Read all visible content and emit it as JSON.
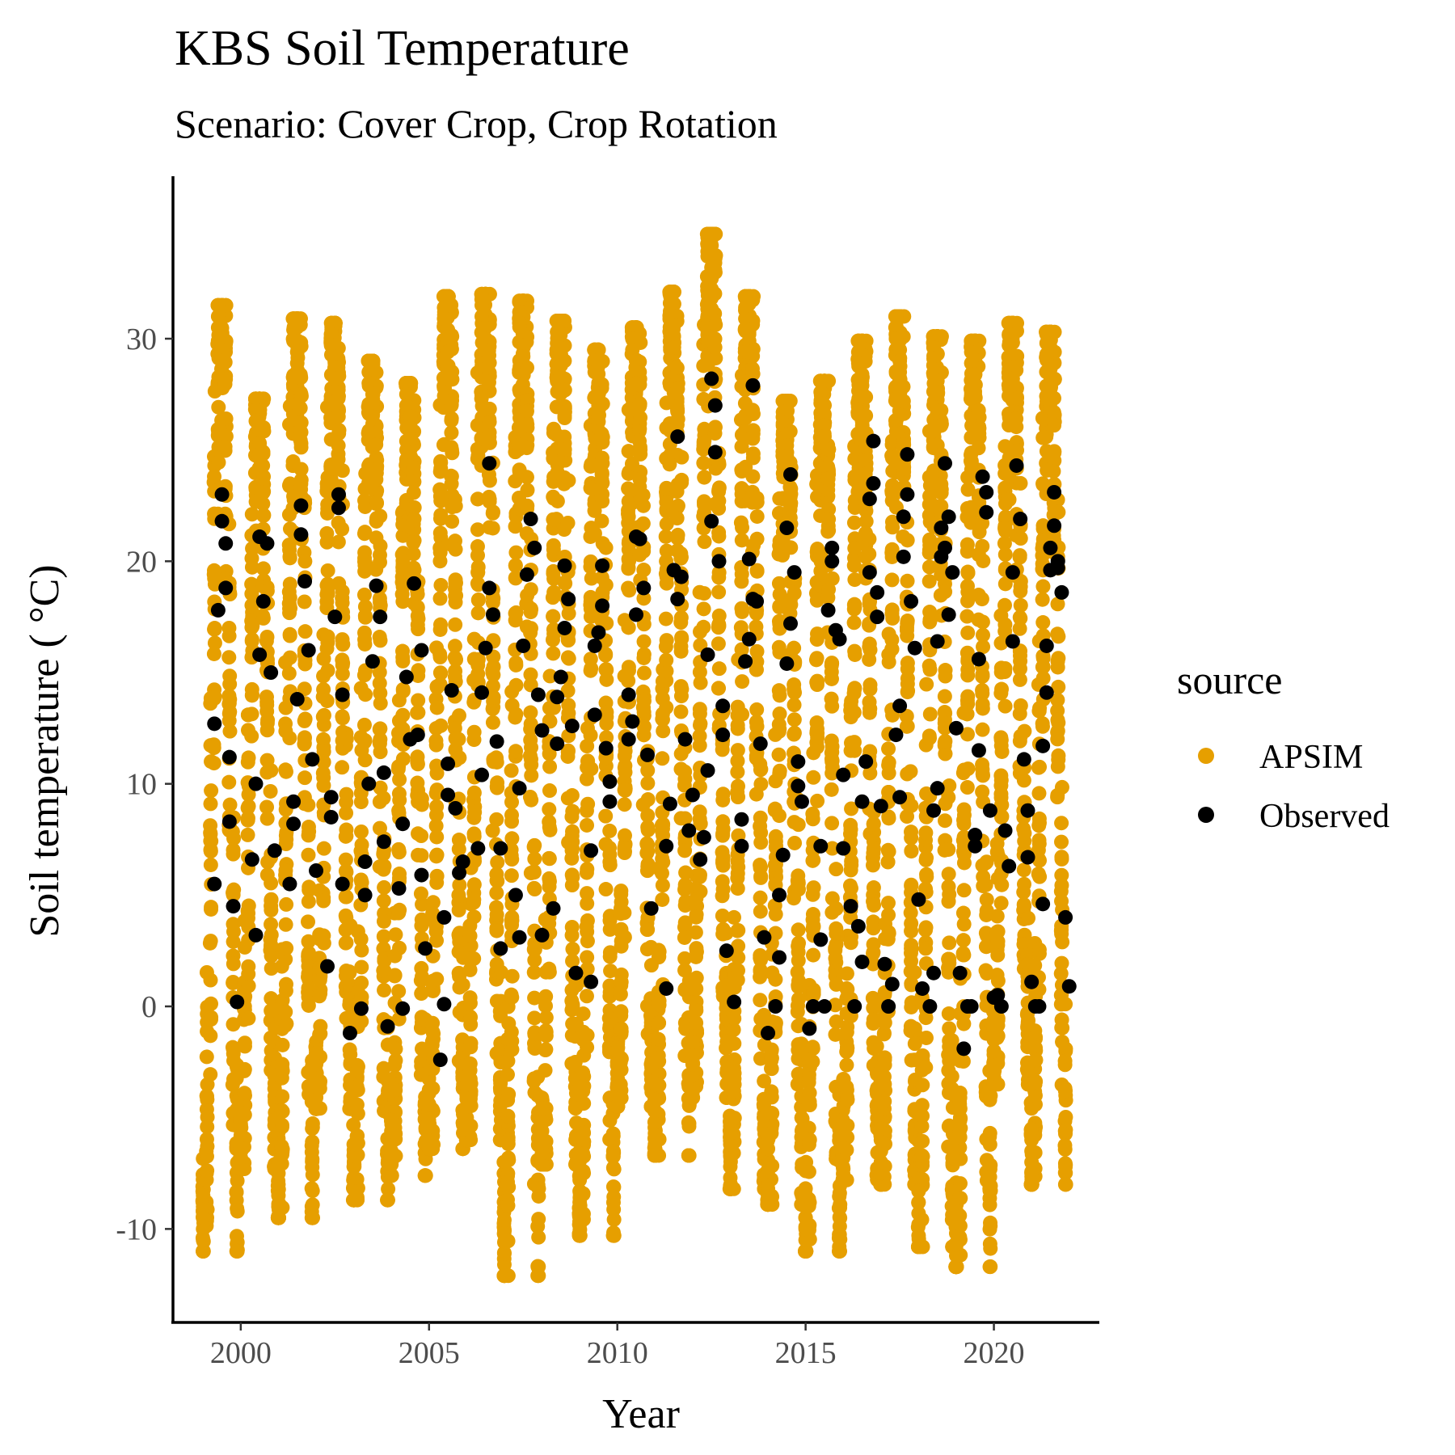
{
  "colors": {
    "apsim": "#E69F00",
    "observed": "#000000",
    "axis": "#000000",
    "tick_text": "#4d4d4d",
    "background": "#ffffff"
  },
  "chart_data": {
    "type": "scatter",
    "title": "KBS Soil Temperature",
    "subtitle": "Scenario: Cover Crop, Crop Rotation",
    "xlabel": "Year",
    "ylabel": "Soil temperature ( °C)",
    "xlim": [
      1998.2,
      2022.8
    ],
    "ylim": [
      -14.2,
      37.3
    ],
    "x_ticks": [
      2000,
      2005,
      2010,
      2015,
      2020
    ],
    "x_tick_labels": [
      "2000",
      "2005",
      "2010",
      "2015",
      "2020"
    ],
    "y_ticks": [
      -10,
      0,
      10,
      20,
      30
    ],
    "y_tick_labels": [
      "-10",
      "0",
      "10",
      "20",
      "30"
    ],
    "grid": false,
    "legend": {
      "title": "source",
      "position": "right",
      "entries": [
        "APSIM",
        "Observed"
      ]
    },
    "series": [
      {
        "name": "APSIM",
        "description_note": "",
        "color": "#E69F00",
        "yearly_range": [
          {
            "year": 1999,
            "min": -11.0,
            "max": 31.5
          },
          {
            "year": 2000,
            "min": -7.3,
            "max": 27.3
          },
          {
            "year": 2001,
            "min": -9.5,
            "max": 30.9
          },
          {
            "year": 2002,
            "min": -4.6,
            "max": 30.7
          },
          {
            "year": 2003,
            "min": -8.7,
            "max": 29.0
          },
          {
            "year": 2004,
            "min": -7.6,
            "max": 28.0
          },
          {
            "year": 2005,
            "min": -6.4,
            "max": 31.9
          },
          {
            "year": 2006,
            "min": -6.0,
            "max": 32.0
          },
          {
            "year": 2007,
            "min": -12.1,
            "max": 31.7
          },
          {
            "year": 2008,
            "min": -7.1,
            "max": 30.8
          },
          {
            "year": 2009,
            "min": -10.3,
            "max": 29.5
          },
          {
            "year": 2010,
            "min": -4.5,
            "max": 30.5
          },
          {
            "year": 2011,
            "min": -6.7,
            "max": 32.1
          },
          {
            "year": 2012,
            "min": -4.1,
            "max": 34.7
          },
          {
            "year": 2013,
            "min": -8.2,
            "max": 31.9
          },
          {
            "year": 2014,
            "min": -8.9,
            "max": 27.2
          },
          {
            "year": 2015,
            "min": -11.0,
            "max": 28.1
          },
          {
            "year": 2016,
            "min": -7.8,
            "max": 29.9
          },
          {
            "year": 2017,
            "min": -8.0,
            "max": 31.0
          },
          {
            "year": 2018,
            "min": -10.8,
            "max": 30.1
          },
          {
            "year": 2019,
            "min": -11.7,
            "max": 29.9
          },
          {
            "year": 2020,
            "min": -3.5,
            "max": 30.7
          },
          {
            "year": 2021,
            "min": -8.0,
            "max": 30.3
          }
        ]
      },
      {
        "name": "Observed",
        "color": "#000000",
        "points": [
          [
            1999.3,
            12.7
          ],
          [
            1999.3,
            5.5
          ],
          [
            1999.4,
            17.8
          ],
          [
            1999.5,
            21.8
          ],
          [
            1999.5,
            23.0
          ],
          [
            1999.6,
            18.8
          ],
          [
            1999.6,
            20.8
          ],
          [
            1999.7,
            11.2
          ],
          [
            1999.7,
            8.3
          ],
          [
            1999.8,
            4.5
          ],
          [
            1999.9,
            0.2
          ],
          [
            2000.3,
            6.6
          ],
          [
            2000.4,
            3.2
          ],
          [
            2000.4,
            10.0
          ],
          [
            2000.5,
            15.8
          ],
          [
            2000.5,
            21.1
          ],
          [
            2000.6,
            18.2
          ],
          [
            2000.7,
            20.8
          ],
          [
            2000.8,
            15.0
          ],
          [
            2000.9,
            7.0
          ],
          [
            2001.3,
            5.5
          ],
          [
            2001.4,
            9.2
          ],
          [
            2001.4,
            8.2
          ],
          [
            2001.5,
            13.8
          ],
          [
            2001.6,
            21.2
          ],
          [
            2001.6,
            22.5
          ],
          [
            2001.7,
            19.1
          ],
          [
            2001.8,
            16.0
          ],
          [
            2001.9,
            11.1
          ],
          [
            2002.0,
            6.1
          ],
          [
            2002.3,
            1.8
          ],
          [
            2002.4,
            8.5
          ],
          [
            2002.4,
            9.4
          ],
          [
            2002.5,
            17.5
          ],
          [
            2002.6,
            23.0
          ],
          [
            2002.6,
            22.4
          ],
          [
            2002.7,
            14.0
          ],
          [
            2002.7,
            5.5
          ],
          [
            2002.9,
            -1.2
          ],
          [
            2003.2,
            -0.1
          ],
          [
            2003.3,
            6.5
          ],
          [
            2003.3,
            5.0
          ],
          [
            2003.4,
            10.0
          ],
          [
            2003.5,
            15.5
          ],
          [
            2003.6,
            18.9
          ],
          [
            2003.7,
            17.5
          ],
          [
            2003.8,
            10.5
          ],
          [
            2003.8,
            7.4
          ],
          [
            2003.9,
            -0.9
          ],
          [
            2004.2,
            5.3
          ],
          [
            2004.3,
            -0.1
          ],
          [
            2004.3,
            8.2
          ],
          [
            2004.4,
            14.8
          ],
          [
            2004.5,
            12.0
          ],
          [
            2004.6,
            19.0
          ],
          [
            2004.7,
            12.2
          ],
          [
            2004.8,
            16.0
          ],
          [
            2004.8,
            5.9
          ],
          [
            2004.9,
            2.6
          ],
          [
            2005.3,
            -2.4
          ],
          [
            2005.4,
            0.1
          ],
          [
            2005.4,
            4.0
          ],
          [
            2005.5,
            9.5
          ],
          [
            2005.5,
            10.9
          ],
          [
            2005.6,
            14.2
          ],
          [
            2005.7,
            8.9
          ],
          [
            2005.8,
            6.0
          ],
          [
            2005.9,
            6.5
          ],
          [
            2006.3,
            7.1
          ],
          [
            2006.4,
            10.4
          ],
          [
            2006.4,
            14.1
          ],
          [
            2006.5,
            16.1
          ],
          [
            2006.6,
            18.8
          ],
          [
            2006.6,
            24.4
          ],
          [
            2006.7,
            17.6
          ],
          [
            2006.8,
            11.9
          ],
          [
            2006.9,
            7.1
          ],
          [
            2006.9,
            2.6
          ],
          [
            2007.3,
            5.0
          ],
          [
            2007.4,
            3.1
          ],
          [
            2007.4,
            9.8
          ],
          [
            2007.5,
            16.2
          ],
          [
            2007.6,
            19.4
          ],
          [
            2007.7,
            21.9
          ],
          [
            2007.8,
            20.6
          ],
          [
            2007.9,
            14.0
          ],
          [
            2008.0,
            12.4
          ],
          [
            2008.0,
            3.2
          ],
          [
            2008.3,
            4.4
          ],
          [
            2008.4,
            13.9
          ],
          [
            2008.4,
            11.8
          ],
          [
            2008.5,
            14.8
          ],
          [
            2008.6,
            17.0
          ],
          [
            2008.6,
            19.8
          ],
          [
            2008.7,
            18.3
          ],
          [
            2008.8,
            12.6
          ],
          [
            2008.9,
            1.5
          ],
          [
            2009.3,
            1.1
          ],
          [
            2009.3,
            7.0
          ],
          [
            2009.4,
            13.1
          ],
          [
            2009.4,
            16.2
          ],
          [
            2009.5,
            16.8
          ],
          [
            2009.6,
            19.8
          ],
          [
            2009.6,
            18.0
          ],
          [
            2009.7,
            11.6
          ],
          [
            2009.8,
            10.1
          ],
          [
            2009.8,
            9.2
          ],
          [
            2010.3,
            12.0
          ],
          [
            2010.3,
            14.0
          ],
          [
            2010.4,
            12.8
          ],
          [
            2010.5,
            17.6
          ],
          [
            2010.5,
            21.1
          ],
          [
            2010.6,
            21.0
          ],
          [
            2010.7,
            18.8
          ],
          [
            2010.8,
            11.3
          ],
          [
            2010.9,
            4.4
          ],
          [
            2011.3,
            0.8
          ],
          [
            2011.3,
            7.2
          ],
          [
            2011.4,
            9.1
          ],
          [
            2011.5,
            19.6
          ],
          [
            2011.6,
            18.3
          ],
          [
            2011.6,
            25.6
          ],
          [
            2011.7,
            19.3
          ],
          [
            2011.8,
            12.0
          ],
          [
            2011.9,
            7.9
          ],
          [
            2012.0,
            9.5
          ],
          [
            2012.2,
            6.6
          ],
          [
            2012.3,
            7.6
          ],
          [
            2012.4,
            10.6
          ],
          [
            2012.4,
            15.8
          ],
          [
            2012.5,
            21.8
          ],
          [
            2012.5,
            28.2
          ],
          [
            2012.6,
            27.0
          ],
          [
            2012.6,
            24.9
          ],
          [
            2012.7,
            20.0
          ],
          [
            2012.8,
            13.5
          ],
          [
            2012.8,
            12.2
          ],
          [
            2012.9,
            2.5
          ],
          [
            2013.1,
            0.2
          ],
          [
            2013.3,
            7.2
          ],
          [
            2013.3,
            8.4
          ],
          [
            2013.4,
            15.5
          ],
          [
            2013.5,
            20.1
          ],
          [
            2013.5,
            16.5
          ],
          [
            2013.6,
            18.3
          ],
          [
            2013.6,
            27.9
          ],
          [
            2013.7,
            18.2
          ],
          [
            2013.8,
            11.8
          ],
          [
            2013.9,
            3.1
          ],
          [
            2014.0,
            -1.2
          ],
          [
            2014.2,
            0.0
          ],
          [
            2014.3,
            2.2
          ],
          [
            2014.3,
            5.0
          ],
          [
            2014.4,
            6.8
          ],
          [
            2014.5,
            15.4
          ],
          [
            2014.5,
            21.5
          ],
          [
            2014.6,
            23.9
          ],
          [
            2014.6,
            17.2
          ],
          [
            2014.7,
            19.5
          ],
          [
            2014.8,
            11.0
          ],
          [
            2014.8,
            9.9
          ],
          [
            2014.9,
            9.2
          ],
          [
            2015.1,
            -1.0
          ],
          [
            2015.2,
            0.0
          ],
          [
            2015.4,
            3.0
          ],
          [
            2015.4,
            7.2
          ],
          [
            2015.5,
            0.0
          ],
          [
            2015.6,
            17.8
          ],
          [
            2015.7,
            20.0
          ],
          [
            2015.7,
            20.6
          ],
          [
            2015.8,
            16.9
          ],
          [
            2015.9,
            16.5
          ],
          [
            2016.0,
            10.4
          ],
          [
            2016.0,
            7.1
          ],
          [
            2016.2,
            4.5
          ],
          [
            2016.3,
            0.0
          ],
          [
            2016.4,
            3.6
          ],
          [
            2016.5,
            2.0
          ],
          [
            2016.5,
            9.2
          ],
          [
            2016.6,
            11.0
          ],
          [
            2016.7,
            19.5
          ],
          [
            2016.7,
            22.8
          ],
          [
            2016.8,
            25.4
          ],
          [
            2016.8,
            23.5
          ],
          [
            2016.9,
            17.5
          ],
          [
            2016.9,
            18.6
          ],
          [
            2017.0,
            9.0
          ],
          [
            2017.1,
            1.9
          ],
          [
            2017.2,
            0.0
          ],
          [
            2017.3,
            1.0
          ],
          [
            2017.4,
            12.2
          ],
          [
            2017.5,
            9.4
          ],
          [
            2017.5,
            13.5
          ],
          [
            2017.6,
            20.2
          ],
          [
            2017.6,
            22.0
          ],
          [
            2017.7,
            24.8
          ],
          [
            2017.7,
            23.0
          ],
          [
            2017.8,
            18.2
          ],
          [
            2017.9,
            16.1
          ],
          [
            2018.0,
            4.8
          ],
          [
            2018.1,
            0.8
          ],
          [
            2018.3,
            0.0
          ],
          [
            2018.4,
            1.5
          ],
          [
            2018.4,
            8.8
          ],
          [
            2018.5,
            9.8
          ],
          [
            2018.5,
            16.4
          ],
          [
            2018.6,
            20.2
          ],
          [
            2018.6,
            21.5
          ],
          [
            2018.7,
            24.4
          ],
          [
            2018.7,
            20.6
          ],
          [
            2018.8,
            22.0
          ],
          [
            2018.8,
            17.6
          ],
          [
            2018.9,
            19.5
          ],
          [
            2019.0,
            12.5
          ],
          [
            2019.1,
            1.5
          ],
          [
            2019.2,
            -1.9
          ],
          [
            2019.3,
            0.0
          ],
          [
            2019.4,
            0.0
          ],
          [
            2019.5,
            7.2
          ],
          [
            2019.5,
            7.7
          ],
          [
            2019.6,
            11.5
          ],
          [
            2019.6,
            15.6
          ],
          [
            2019.7,
            23.8
          ],
          [
            2019.8,
            22.2
          ],
          [
            2019.8,
            23.1
          ],
          [
            2019.9,
            8.8
          ],
          [
            2020.0,
            0.4
          ],
          [
            2020.1,
            0.5
          ],
          [
            2020.2,
            0.0
          ],
          [
            2020.3,
            7.9
          ],
          [
            2020.4,
            6.3
          ],
          [
            2020.5,
            16.4
          ],
          [
            2020.5,
            19.5
          ],
          [
            2020.6,
            24.3
          ],
          [
            2020.7,
            21.9
          ],
          [
            2020.8,
            11.1
          ],
          [
            2020.9,
            6.7
          ],
          [
            2020.9,
            8.8
          ],
          [
            2021.0,
            1.1
          ],
          [
            2021.1,
            0.0
          ],
          [
            2021.2,
            0.0
          ],
          [
            2021.3,
            4.6
          ],
          [
            2021.3,
            11.7
          ],
          [
            2021.4,
            14.1
          ],
          [
            2021.4,
            16.2
          ],
          [
            2021.5,
            19.6
          ],
          [
            2021.5,
            20.6
          ],
          [
            2021.6,
            21.6
          ],
          [
            2021.6,
            23.1
          ],
          [
            2021.7,
            20.0
          ],
          [
            2021.7,
            19.7
          ],
          [
            2021.8,
            18.6
          ],
          [
            2021.9,
            4.0
          ],
          [
            2022.0,
            0.9
          ]
        ]
      }
    ]
  }
}
